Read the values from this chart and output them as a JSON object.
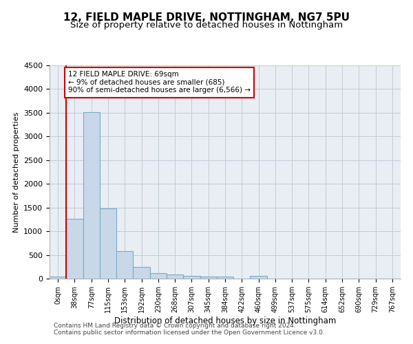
{
  "title": "12, FIELD MAPLE DRIVE, NOTTINGHAM, NG7 5PU",
  "subtitle": "Size of property relative to detached houses in Nottingham",
  "xlabel": "Distribution of detached houses by size in Nottingham",
  "ylabel": "Number of detached properties",
  "bar_color": "#c8d8e8",
  "bar_edge_color": "#7aaac8",
  "bin_labels": [
    "0sqm",
    "38sqm",
    "77sqm",
    "115sqm",
    "153sqm",
    "192sqm",
    "230sqm",
    "268sqm",
    "307sqm",
    "345sqm",
    "384sqm",
    "422sqm",
    "460sqm",
    "499sqm",
    "537sqm",
    "575sqm",
    "614sqm",
    "652sqm",
    "690sqm",
    "729sqm",
    "767sqm"
  ],
  "bar_values": [
    40,
    1270,
    3510,
    1480,
    580,
    240,
    115,
    80,
    55,
    45,
    40,
    0,
    55,
    0,
    0,
    0,
    0,
    0,
    0,
    0,
    0
  ],
  "ylim": [
    0,
    4500
  ],
  "yticks": [
    0,
    500,
    1000,
    1500,
    2000,
    2500,
    3000,
    3500,
    4000,
    4500
  ],
  "property_line_x": 1.0,
  "annotation_text": "12 FIELD MAPLE DRIVE: 69sqm\n← 9% of detached houses are smaller (685)\n90% of semi-detached houses are larger (6,566) →",
  "annotation_box_color": "#ffffff",
  "annotation_border_color": "#cc0000",
  "footer_line1": "Contains HM Land Registry data © Crown copyright and database right 2024.",
  "footer_line2": "Contains public sector information licensed under the Open Government Licence v3.0.",
  "background_color": "#e8eef4",
  "grid_color": "#c0ccd8",
  "title_fontsize": 11,
  "subtitle_fontsize": 9.5
}
